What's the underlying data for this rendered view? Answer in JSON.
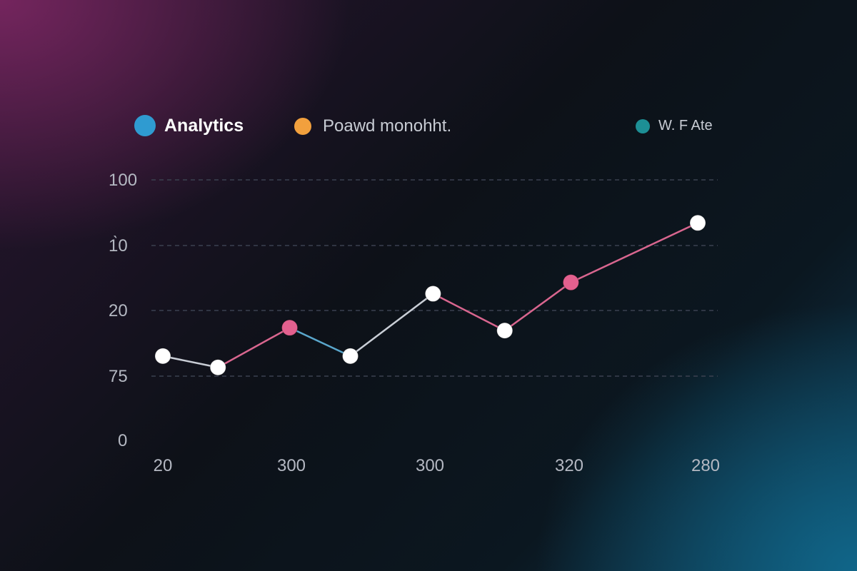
{
  "chart_data": {
    "type": "line",
    "title": "",
    "xlabel": "",
    "ylabel": "",
    "legend": [
      {
        "label": "Analytics",
        "color": "#2f9bd1"
      },
      {
        "label": "Poawd monohht.",
        "color": "#f2a03d"
      },
      {
        "label": "W. F Ate",
        "color": "#1d8f95"
      }
    ],
    "legend_placement": "top",
    "x_tick_labels": [
      "20",
      "300",
      "300",
      "320",
      "280"
    ],
    "y_tick_labels": [
      "100",
      "1̀0",
      "20",
      "75",
      "0"
    ],
    "grid": true,
    "ylim": [
      0,
      100
    ],
    "points": [
      {
        "x": 0.0,
        "y": 29,
        "marker": "white"
      },
      {
        "x": 0.1,
        "y": 25,
        "marker": "white"
      },
      {
        "x": 0.23,
        "y": 39,
        "marker": "pink"
      },
      {
        "x": 0.34,
        "y": 29,
        "marker": "white"
      },
      {
        "x": 0.49,
        "y": 51,
        "marker": "white"
      },
      {
        "x": 0.62,
        "y": 38,
        "marker": "white"
      },
      {
        "x": 0.74,
        "y": 55,
        "marker": "pink"
      },
      {
        "x": 0.97,
        "y": 76,
        "marker": "white"
      }
    ],
    "segment_colors": [
      "#c9ced6",
      "#d9668f",
      "#5aa7cc",
      "#c9ced6",
      "#d9668f",
      "#d9668f",
      "#d9668f"
    ],
    "colors": {
      "white": "#ffffff",
      "pink": "#e3608e",
      "grid": "#3b4150",
      "axis": "#d8dbe0",
      "axis_end": "#3f7fa8"
    }
  }
}
